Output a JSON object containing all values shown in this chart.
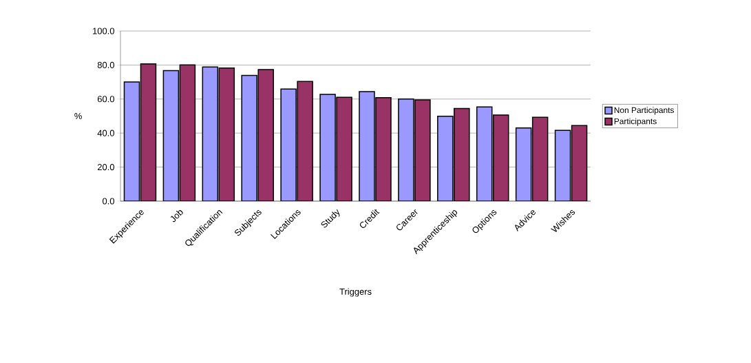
{
  "chart_data": {
    "type": "bar",
    "xlabel": "Triggers",
    "ylabel": "%",
    "categories": [
      "Experience",
      "Job",
      "Qualification",
      "Subjects",
      "Locations",
      "Study",
      "Credit",
      "Career",
      "Apprenticeship",
      "Options",
      "Advice",
      "Wishes"
    ],
    "series": [
      {
        "name": "Non Participants",
        "color": "#9999ff",
        "values": [
          70.0,
          76.7,
          78.8,
          73.9,
          65.9,
          62.7,
          64.4,
          60.0,
          49.9,
          55.4,
          43.0,
          41.6
        ]
      },
      {
        "name": "Participants",
        "color": "#993366",
        "values": [
          80.7,
          80.1,
          78.2,
          77.3,
          70.3,
          61.0,
          60.8,
          59.5,
          54.4,
          50.6,
          49.3,
          44.4
        ]
      }
    ],
    "ylim": [
      0,
      100
    ],
    "yticks": [
      {
        "value": 0,
        "label": "0.0"
      },
      {
        "value": 20,
        "label": "20.0"
      },
      {
        "value": 40,
        "label": "40.0"
      },
      {
        "value": 60,
        "label": "60.0"
      },
      {
        "value": 80,
        "label": "80.0"
      },
      {
        "value": 100,
        "label": "100.0"
      }
    ],
    "grid": "y",
    "legend": "right"
  }
}
